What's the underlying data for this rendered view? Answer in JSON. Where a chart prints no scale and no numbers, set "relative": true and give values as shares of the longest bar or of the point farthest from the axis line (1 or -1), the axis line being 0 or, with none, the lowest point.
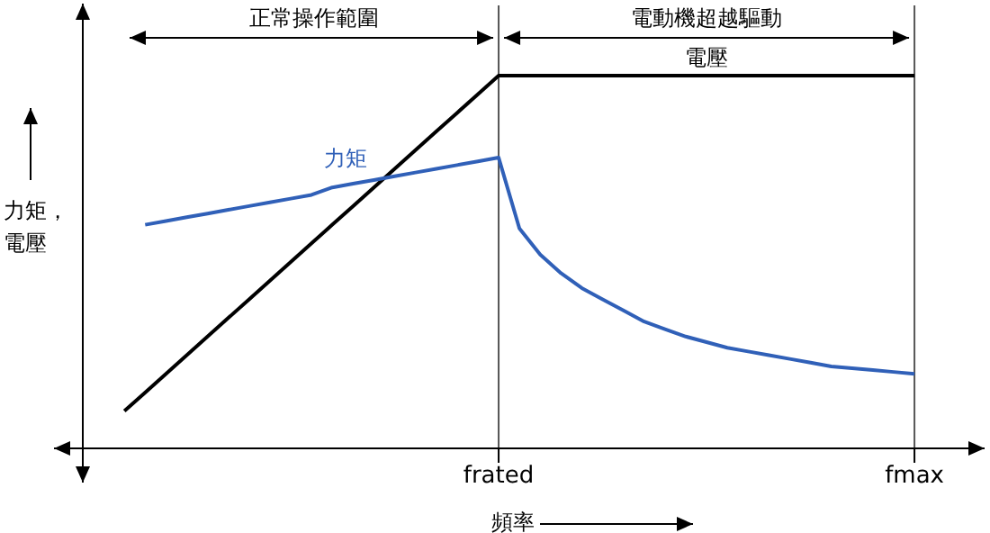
{
  "chart_data": {
    "type": "line",
    "relative": true,
    "ylabel": "力矩，電壓",
    "xlabel": "頻率",
    "categories": [
      null,
      null,
      null,
      null,
      null,
      null,
      null,
      null,
      null,
      null,
      null,
      null,
      null,
      null,
      null,
      null,
      null,
      null,
      null,
      null,
      "frated",
      null,
      null,
      null,
      null,
      null,
      null,
      null,
      null,
      null,
      null,
      null,
      null,
      null,
      null,
      null,
      null,
      null,
      null,
      null,
      "fmax"
    ],
    "annotations": [
      "正常操作範圍",
      "電動機超越驅動"
    ],
    "ref_lines": [
      {
        "axis": "x",
        "value": "frated",
        "color": "#555555"
      },
      {
        "axis": "x",
        "value": "fmax",
        "color": "#555555"
      }
    ],
    "series": [
      {
        "name": "電壓",
        "color": "#000000",
        "values": [
          null,
          null,
          0.1,
          0.15,
          0.2,
          0.25,
          0.3,
          0.35,
          0.4,
          0.45,
          0.5,
          0.55,
          0.6,
          0.65,
          0.7,
          0.75,
          0.8,
          0.85,
          0.9,
          0.95,
          1,
          1,
          1,
          1,
          1,
          1,
          1,
          1,
          1,
          1,
          1,
          1,
          1,
          1,
          1,
          1,
          1,
          1,
          1,
          1,
          1
        ]
      },
      {
        "name": "力矩",
        "color": "#3060b8",
        "values": [
          null,
          null,
          null,
          0.6,
          0.61,
          0.62,
          0.63,
          0.64,
          0.65,
          0.66,
          0.67,
          0.68,
          0.7,
          0.71,
          0.72,
          0.73,
          0.74,
          0.75,
          0.76,
          0.77,
          0.78,
          0.59,
          0.52,
          0.47,
          0.43,
          0.4,
          0.37,
          0.34,
          0.32,
          0.3,
          0.285,
          0.27,
          0.26,
          0.25,
          0.24,
          0.23,
          0.22,
          0.215,
          0.21,
          0.205,
          0.2
        ]
      }
    ]
  }
}
